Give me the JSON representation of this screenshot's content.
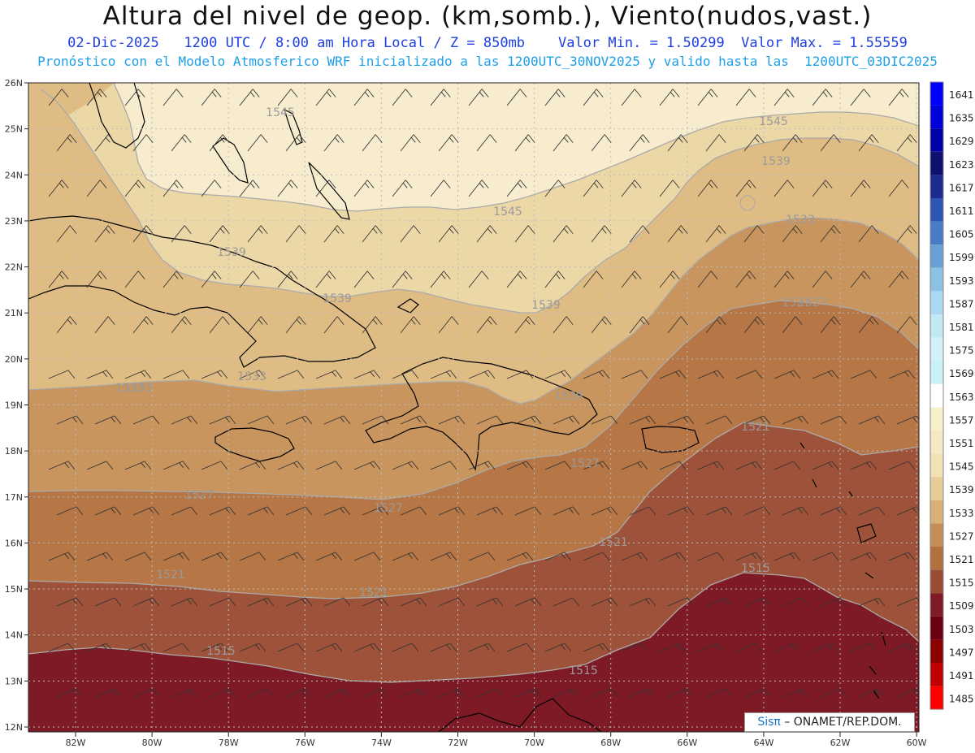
{
  "header": {
    "title": "Altura del nivel de geop. (km,somb.), Viento(nudos,vast.)",
    "subtitle1": "02-Dic-2025   1200 UTC / 8:00 am Hora Local / Z = 850mb    Valor Min. = 1.50299  Valor Max. = 1.55559",
    "subtitle2": "Pronóstico con el Modelo Atmosferico WRF inicializado a las 1200UTC_30NOV2025 y valido hasta las  1200UTC_03DIC2025"
  },
  "map": {
    "lat_labels": [
      "26N",
      "25N",
      "24N",
      "23N",
      "22N",
      "21N",
      "20N",
      "19N",
      "18N",
      "17N",
      "16N",
      "15N",
      "14N",
      "13N",
      "12N"
    ],
    "lon_labels": [
      "82W",
      "80W",
      "78W",
      "76W",
      "74W",
      "72W",
      "70W",
      "68W",
      "66W",
      "64W",
      "62W",
      "60W"
    ],
    "contour_labels": [
      "1545",
      "1545",
      "1545",
      "1539",
      "1539",
      "1539",
      "1539",
      "1533",
      "1533",
      "1533",
      "1527",
      "1527",
      "1527",
      "1527",
      "1521",
      "1521",
      "1521",
      "1521",
      "1515",
      "1515",
      "1515",
      "1539",
      "1533",
      "1527"
    ],
    "colors": {
      "band_1545": "#f7ecce",
      "band_1539": "#ecd7a7",
      "band_1533": "#dfbc84",
      "band_1527": "#c8955e",
      "band_1521": "#b67645",
      "band_1515": "#9f523a",
      "band_1509": "#7d1a26",
      "coast": "#000000",
      "contour": "#aaaaaa"
    }
  },
  "colorbar": {
    "labels": [
      "1641",
      "1635",
      "1629",
      "1623",
      "1617",
      "1611",
      "1605",
      "1599",
      "1593",
      "1587",
      "1581",
      "1575",
      "1569",
      "1563",
      "1557",
      "1551",
      "1545",
      "1539",
      "1533",
      "1527",
      "1521",
      "1515",
      "1509",
      "1503",
      "1497",
      "1491",
      "1485"
    ],
    "colors": [
      "#0000ff",
      "#0000d8",
      "#0000a8",
      "#10106e",
      "#1f2b8e",
      "#2d55b3",
      "#4a7cc6",
      "#6a9fd4",
      "#8cc1e3",
      "#aad9ef",
      "#c2e8f3",
      "#d2f0f7",
      "#c8f0f7",
      "#ffffff",
      "#f8f0c8",
      "#f4e9c2",
      "#f1e1b3",
      "#e7cc97",
      "#d7b07a",
      "#c48e5a",
      "#b0703f",
      "#9a4d34",
      "#7e1b25",
      "#6b0015",
      "#8c0000",
      "#c00000",
      "#ff0000"
    ]
  },
  "credit": {
    "brand": "Sisπ",
    "text": " – ONAMET/REP.DOM."
  }
}
